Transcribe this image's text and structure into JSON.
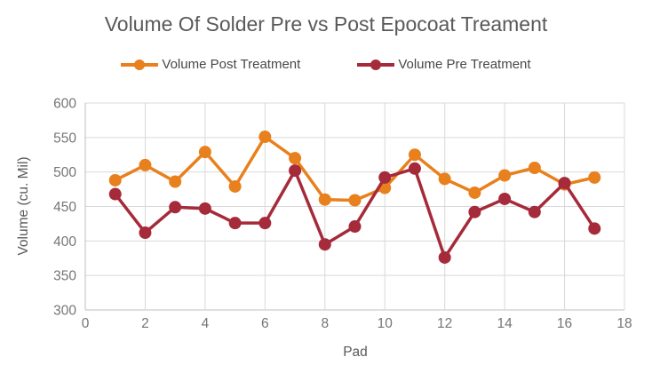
{
  "colors": {
    "title_text": "#595959",
    "legend_text": "#474747",
    "tick_text": "#757575",
    "axis_title_text": "#595959",
    "gridline": "#D9D9D9",
    "axis_line": "#BFBFBF",
    "post_series": "#E8801D",
    "pre_series": "#A52A3A",
    "background": "#FFFFFF"
  },
  "chart_data": {
    "type": "line",
    "title": "Volume Of Solder Pre vs Post Epocoat Treament",
    "xlabel": "Pad",
    "ylabel": "Volume (cu. Mil)",
    "x": [
      1,
      2,
      3,
      4,
      5,
      6,
      7,
      8,
      9,
      10,
      11,
      12,
      13,
      14,
      15,
      16,
      17
    ],
    "series": [
      {
        "name": "Volume Post Treatment",
        "color": "#E8801D",
        "values": [
          488,
          510,
          486,
          529,
          479,
          551,
          520,
          460,
          459,
          477,
          525,
          490,
          470,
          495,
          506,
          482,
          492
        ]
      },
      {
        "name": "Volume Pre Treatment",
        "color": "#A52A3A",
        "values": [
          468,
          412,
          449,
          447,
          426,
          426,
          502,
          395,
          421,
          492,
          505,
          376,
          442,
          461,
          442,
          484,
          418
        ]
      }
    ],
    "xlim": [
      0,
      18
    ],
    "ylim": [
      300,
      600
    ],
    "x_ticks": [
      0,
      2,
      4,
      6,
      8,
      10,
      12,
      14,
      16,
      18
    ],
    "y_ticks": [
      300,
      350,
      400,
      450,
      500,
      550,
      600
    ],
    "grid": true,
    "legend_position": "top",
    "marker": "circle",
    "marker_radius": 7,
    "line_width": 3.5
  }
}
